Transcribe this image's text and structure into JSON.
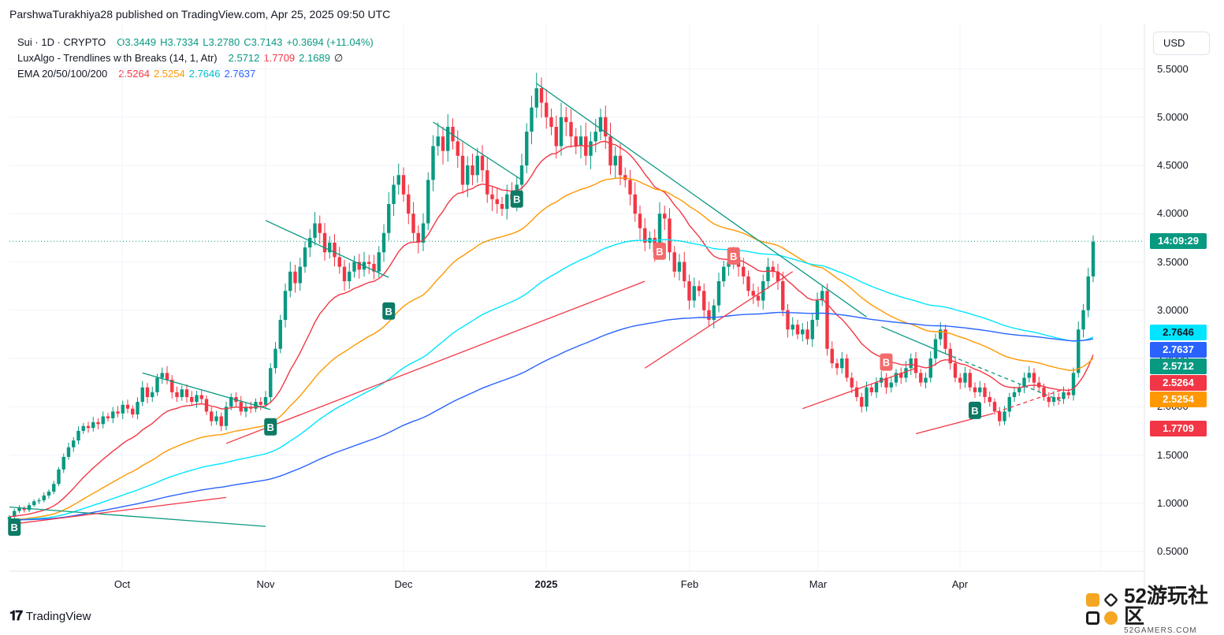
{
  "publisher": "ParshwaTurakhiya28 published on TradingView.com, Apr 25, 2025 09:50 UTC",
  "legend": {
    "symbol": "Sui · 1D · CRYPTO",
    "open": "O3.3449",
    "high": "H3.7334",
    "low": "L3.2780",
    "close": "C3.7143",
    "change": "+0.3694 (+11.04%)",
    "lux_label": "LuxAlgo - Trendlines with Breaks (14, 1, Atr)",
    "lux_v1": "2.5712",
    "lux_v2": "1.7709",
    "lux_v3": "2.1689",
    "lux_v4": "∅",
    "ema_label": "EMA 20/50/100/200",
    "ema_v1": "2.5264",
    "ema_v2": "2.5254",
    "ema_v3": "2.7646",
    "ema_v4": "2.7637"
  },
  "currency": "USD",
  "colors": {
    "up": "#089981",
    "down": "#f23645",
    "ema20": "#f23645",
    "ema50": "#ff9800",
    "ema100": "#00e5ff",
    "ema200": "#2962ff",
    "trend_down": "#089981",
    "trend_up": "#f23645",
    "buy": "#0d7a66",
    "break_red": "#f26b6b",
    "price_tag": "#089981"
  },
  "brand": "TradingView",
  "watermark": {
    "title": "52游玩社区",
    "sub": "52GAMERS.COM"
  },
  "chart_data": {
    "type": "candlestick",
    "title": "Sui · 1D · CRYPTO",
    "x_ticks": [
      "Oct",
      "Nov",
      "Dec",
      "2025",
      "Feb",
      "Mar",
      "Apr"
    ],
    "y_ticks": [
      "5.5000",
      "5.0000",
      "4.5000",
      "4.0000",
      "3.5000",
      "3.0000",
      "2.5000",
      "2.0000",
      "1.5000",
      "1.0000",
      "0.5000"
    ],
    "ylim": [
      0.3,
      5.8
    ],
    "last_price": 3.7143,
    "countdown": "14:09:29",
    "price_labels": [
      {
        "value": "2.7646",
        "color": "#00e5ff",
        "text": "#131722"
      },
      {
        "value": "2.7637",
        "color": "#2962ff",
        "text": "#ffffff"
      },
      {
        "value": "2.5712",
        "color": "#089981",
        "text": "#ffffff"
      },
      {
        "value": "2.5264",
        "color": "#f23645",
        "text": "#ffffff"
      },
      {
        "value": "2.5254",
        "color": "#ff9800",
        "text": "#ffffff"
      },
      {
        "value": "1.7709",
        "color": "#f23645",
        "text": "#ffffff"
      }
    ],
    "closes": [
      0.86,
      0.92,
      0.95,
      0.93,
      0.98,
      1.02,
      1.03,
      1.08,
      1.12,
      1.2,
      1.35,
      1.48,
      1.58,
      1.65,
      1.75,
      1.8,
      1.78,
      1.84,
      1.82,
      1.9,
      1.88,
      1.95,
      1.93,
      2.02,
      1.98,
      1.92,
      2.05,
      2.2,
      2.1,
      2.15,
      2.3,
      2.35,
      2.28,
      2.15,
      2.1,
      2.18,
      2.1,
      2.05,
      2.12,
      2.08,
      1.95,
      1.85,
      1.9,
      1.8,
      2.0,
      2.1,
      2.05,
      1.95,
      2.0,
      1.98,
      2.05,
      2.02,
      2.1,
      2.4,
      2.6,
      2.9,
      3.2,
      3.4,
      3.28,
      3.45,
      3.65,
      3.75,
      3.9,
      3.8,
      3.6,
      3.7,
      3.55,
      3.45,
      3.3,
      3.4,
      3.5,
      3.42,
      3.5,
      3.48,
      3.4,
      3.6,
      3.8,
      4.1,
      4.3,
      4.4,
      4.2,
      4.0,
      3.8,
      3.7,
      3.9,
      4.35,
      4.7,
      4.8,
      4.65,
      4.9,
      4.75,
      4.6,
      4.3,
      4.5,
      4.4,
      4.6,
      4.45,
      4.2,
      4.15,
      4.1,
      4.05,
      4.2,
      4.15,
      4.3,
      4.5,
      4.85,
      5.1,
      5.3,
      5.15,
      5.0,
      4.9,
      4.7,
      5.0,
      4.95,
      4.8,
      4.7,
      4.8,
      4.6,
      4.75,
      4.85,
      5.0,
      4.8,
      4.5,
      4.6,
      4.4,
      4.35,
      4.2,
      4.0,
      3.85,
      3.7,
      3.75,
      3.6,
      4.0,
      3.95,
      3.6,
      3.4,
      3.5,
      3.3,
      3.1,
      3.25,
      3.2,
      3.0,
      2.9,
      3.05,
      3.3,
      3.45,
      3.5,
      3.55,
      3.45,
      3.35,
      3.2,
      3.15,
      3.1,
      3.3,
      3.45,
      3.4,
      3.3,
      3.0,
      2.8,
      2.85,
      2.75,
      2.8,
      2.7,
      2.9,
      3.1,
      3.2,
      2.6,
      2.45,
      2.4,
      2.5,
      2.3,
      2.2,
      2.1,
      2.0,
      2.2,
      2.15,
      2.25,
      2.3,
      2.2,
      2.25,
      2.35,
      2.3,
      2.4,
      2.5,
      2.35,
      2.25,
      2.3,
      2.5,
      2.7,
      2.8,
      2.6,
      2.45,
      2.3,
      2.25,
      2.35,
      2.2,
      2.15,
      2.2,
      2.1,
      2.05,
      1.95,
      1.85,
      1.95,
      2.1,
      2.15,
      2.2,
      2.3,
      2.35,
      2.25,
      2.2,
      2.1,
      2.05,
      2.1,
      2.08,
      2.15,
      2.12,
      2.35,
      2.8,
      3.0,
      3.35,
      3.71
    ],
    "ema_series": [
      {
        "name": "EMA 20",
        "period": 20,
        "last": "2.5264"
      },
      {
        "name": "EMA 50",
        "period": 50,
        "last": "2.5254"
      },
      {
        "name": "EMA 100",
        "period": 100,
        "last": "2.7646"
      },
      {
        "name": "EMA 200",
        "period": 200,
        "last": "2.7637"
      }
    ],
    "trendlines": [
      {
        "kind": "down",
        "from": [
          0,
          0.96
        ],
        "to": [
          52,
          0.76
        ]
      },
      {
        "kind": "down",
        "from": [
          27,
          2.35
        ],
        "to": [
          53,
          1.97
        ]
      },
      {
        "kind": "down",
        "from": [
          52,
          3.93
        ],
        "to": [
          77,
          3.34
        ]
      },
      {
        "kind": "down",
        "from": [
          86,
          4.95
        ],
        "to": [
          104,
          4.35
        ]
      },
      {
        "kind": "down",
        "from": [
          107,
          5.35
        ],
        "to": [
          174,
          2.93
        ]
      },
      {
        "kind": "down",
        "from": [
          177,
          2.83
        ],
        "to": [
          190,
          2.55
        ]
      },
      {
        "kind": "down_dashed",
        "from": [
          190,
          2.55
        ],
        "to": [
          214,
          2.05
        ]
      },
      {
        "kind": "up",
        "from": [
          0,
          0.78
        ],
        "to": [
          44,
          1.06
        ]
      },
      {
        "kind": "up",
        "from": [
          44,
          1.62
        ],
        "to": [
          129,
          3.3
        ]
      },
      {
        "kind": "up",
        "from": [
          129,
          2.4
        ],
        "to": [
          159,
          3.4
        ]
      },
      {
        "kind": "up",
        "from": [
          161,
          1.98
        ],
        "to": [
          184,
          2.4
        ]
      },
      {
        "kind": "up",
        "from": [
          184,
          1.72
        ],
        "to": [
          199,
          1.92
        ]
      },
      {
        "kind": "up_dashed",
        "from": [
          199,
          1.92
        ],
        "to": [
          214,
          2.18
        ]
      }
    ],
    "signals": [
      {
        "label": "B",
        "type": "buy",
        "index": 1,
        "price": 0.76
      },
      {
        "label": "B",
        "type": "buy",
        "index": 53,
        "price": 1.8
      },
      {
        "label": "B",
        "type": "buy",
        "index": 77,
        "price": 3.0
      },
      {
        "label": "B",
        "type": "buy",
        "index": 103,
        "price": 4.16
      },
      {
        "label": "B",
        "type": "break",
        "index": 132,
        "price": 3.62
      },
      {
        "label": "B",
        "type": "break",
        "index": 147,
        "price": 3.57
      },
      {
        "label": "B",
        "type": "break",
        "index": 178,
        "price": 2.47
      },
      {
        "label": "B",
        "type": "buy",
        "index": 196,
        "price": 1.97
      }
    ]
  }
}
